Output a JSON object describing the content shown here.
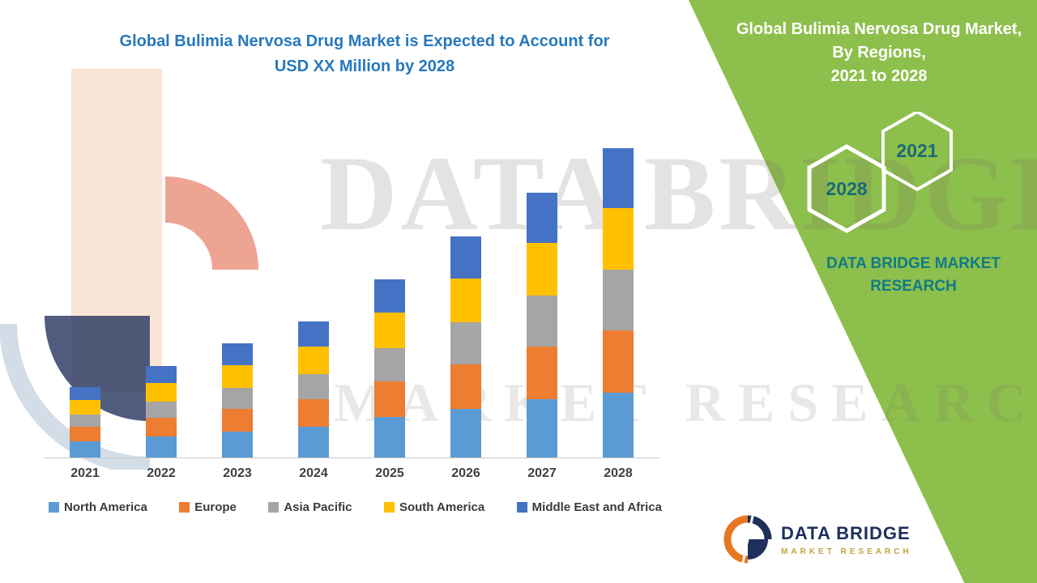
{
  "title": {
    "line1": "Global Bulimia Nervosa Drug Market is Expected to Account for",
    "line2": "USD XX Million by 2028",
    "color": "#2779bd"
  },
  "side_panel": {
    "title_line1": "Global Bulimia Nervosa Drug Market, By Regions,",
    "title_line2": "2021 to 2028",
    "hexagon_year_top": "2021",
    "hexagon_year_bottom": "2028",
    "brand_line1": "DATA BRIDGE MARKET",
    "brand_line2": "RESEARCH",
    "panel_color": "#8dbf4c",
    "hexagon_text_color": "#1a6b74",
    "brand_text_color": "#0f7b86"
  },
  "watermark": {
    "text_line1": "DATA BRIDGE",
    "text_line2": "MARKET RESEARCH"
  },
  "footer_logo": {
    "name": "DATA BRIDGE",
    "subtitle": "MARKET RESEARCH"
  },
  "chart_data": {
    "type": "bar",
    "stacked": true,
    "title": "Global Bulimia Nervosa Drug Market is Expected to Account for USD XX Million by 2028",
    "xlabel": "",
    "ylabel": "",
    "grid": false,
    "y_axis_visible": false,
    "legend_position": "bottom",
    "value_labels": "none (market size shown as USD XX Million)",
    "note": "No numeric axis shown in source; series values are estimated relative units read from bar heights",
    "categories": [
      "2021",
      "2022",
      "2023",
      "2024",
      "2025",
      "2026",
      "2027",
      "2028"
    ],
    "series": [
      {
        "name": "North America",
        "color": "#5b9bd5",
        "values": [
          20,
          26,
          32,
          38,
          50,
          60,
          72,
          80
        ]
      },
      {
        "name": "Europe",
        "color": "#ed7d31",
        "values": [
          18,
          23,
          28,
          34,
          44,
          55,
          65,
          77
        ]
      },
      {
        "name": "Asia Pacific",
        "color": "#a5a5a5",
        "values": [
          15,
          20,
          26,
          31,
          41,
          52,
          63,
          75
        ]
      },
      {
        "name": "South America",
        "color": "#ffc000",
        "values": [
          18,
          23,
          28,
          34,
          44,
          54,
          65,
          76
        ]
      },
      {
        "name": "Middle East and Africa",
        "color": "#4472c4",
        "values": [
          16,
          21,
          27,
          31,
          41,
          52,
          62,
          74
        ]
      }
    ],
    "totals": [
      87,
      113,
      141,
      168,
      220,
      273,
      327,
      382
    ]
  }
}
